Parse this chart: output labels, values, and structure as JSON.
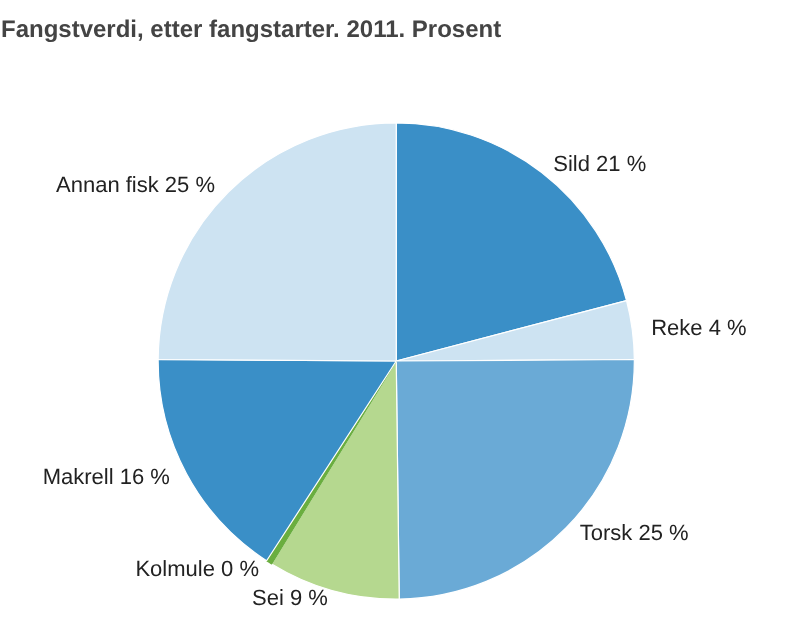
{
  "chart_data": {
    "type": "pie",
    "title": "Fangstverdi, etter fangstarter. 2011. Prosent",
    "categories": [
      "Sild",
      "Reke",
      "Torsk",
      "Sei",
      "Kolmule",
      "Makrell",
      "Annan fisk"
    ],
    "values": [
      21,
      4,
      25,
      9,
      0.4,
      16,
      25
    ],
    "value_labels": [
      "21 %",
      "4 %",
      "25 %",
      "9 %",
      "0 %",
      "16 %",
      "25 %"
    ],
    "colors": [
      "#3a8fc7",
      "#cde3f2",
      "#6aaad6",
      "#b5d88f",
      "#6aae3f",
      "#3a8fc7",
      "#cde3f2"
    ]
  }
}
